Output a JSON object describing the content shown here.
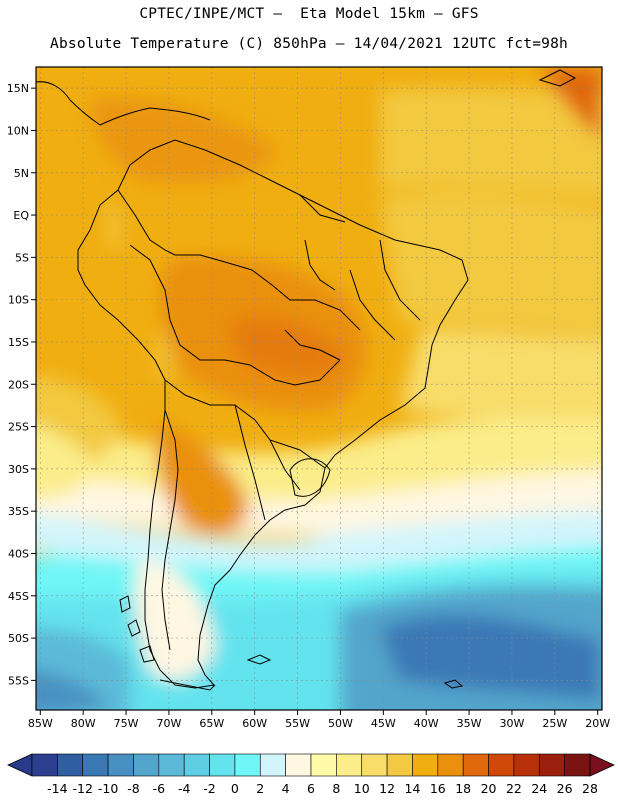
{
  "header": {
    "line1": "CPTEC/INPE/MCT –  Eta Model 15km – GFS",
    "line2": "Absolute Temperature (C) 850hPa – 14/04/2021 12UTC fct=98h"
  },
  "map": {
    "lon_range": [
      -85.5,
      -19.5
    ],
    "lat_range": [
      -58.5,
      17.5
    ],
    "lon_ticks": [
      "85W",
      "80W",
      "75W",
      "70W",
      "65W",
      "60W",
      "55W",
      "50W",
      "45W",
      "40W",
      "35W",
      "30W",
      "25W",
      "20W"
    ],
    "lat_ticks": [
      "15N",
      "10N",
      "5N",
      "EQ",
      "5S",
      "10S",
      "15S",
      "20S",
      "25S",
      "30S",
      "35S",
      "40S",
      "45S",
      "50S",
      "55S"
    ],
    "lon_tick_values": [
      -85,
      -80,
      -75,
      -70,
      -65,
      -60,
      -55,
      -50,
      -45,
      -40,
      -35,
      -30,
      -25,
      -20
    ],
    "lat_tick_values": [
      15,
      10,
      5,
      0,
      -5,
      -10,
      -15,
      -20,
      -25,
      -30,
      -35,
      -40,
      -45,
      -50,
      -55
    ],
    "grid": true
  },
  "colorbar": {
    "labels": [
      "-14",
      "-12",
      "-10",
      "-8",
      "-6",
      "-4",
      "-2",
      "0",
      "2",
      "4",
      "6",
      "8",
      "10",
      "12",
      "14",
      "16",
      "18",
      "20",
      "22",
      "24",
      "26",
      "28"
    ],
    "colors": [
      "#2b3f8e",
      "#2f5ea3",
      "#3a78b5",
      "#4990c2",
      "#53a5cc",
      "#5cbad8",
      "#5fcde3",
      "#64e3ee",
      "#70f6f6",
      "#d2f5fb",
      "#fff7e2",
      "#fffaa8",
      "#fbed8a",
      "#f8dd6a",
      "#f3c941",
      "#f0ae11",
      "#ea900d",
      "#e0680c",
      "#cf4807",
      "#b8300a",
      "#9b1f0d",
      "#7a1413"
    ],
    "under_color": "#2a3a8a",
    "over_color": "#7a0f20"
  }
}
